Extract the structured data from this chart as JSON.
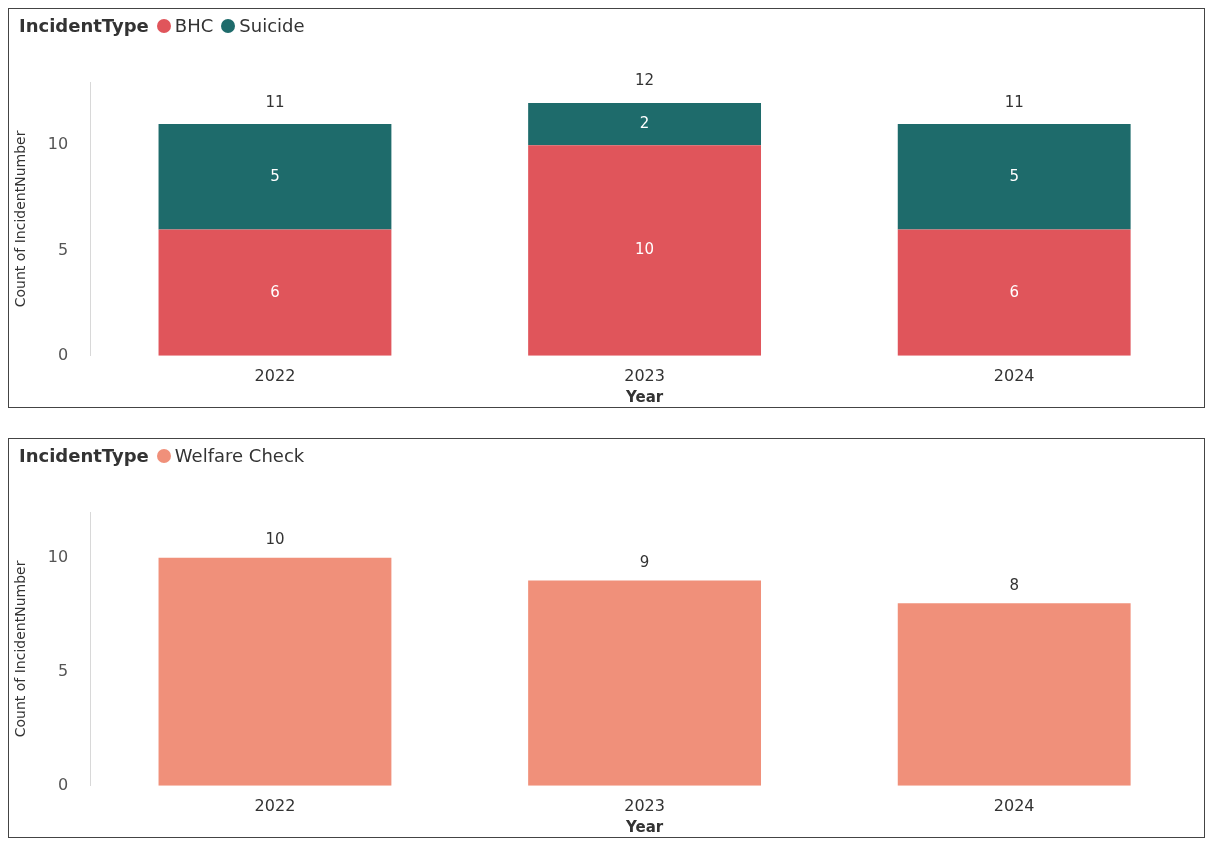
{
  "chart_data": [
    {
      "type": "bar",
      "legend_title": "IncidentType",
      "legend": "top left",
      "xlabel": "Year",
      "ylabel": "Count of IncidentNumber",
      "categories": [
        "2022",
        "2023",
        "2024"
      ],
      "stacked": true,
      "data_labels": true,
      "totals": [
        "11",
        "12",
        "11"
      ],
      "ylim": [
        0,
        13
      ],
      "yticks": [
        0,
        5,
        10
      ],
      "series": [
        {
          "name": "BHC",
          "color": "#e0555b",
          "values": [
            6,
            10,
            6
          ]
        },
        {
          "name": "Suicide",
          "color": "#1e6b6b",
          "values": [
            5,
            2,
            5
          ]
        }
      ]
    },
    {
      "type": "bar",
      "legend_title": "IncidentType",
      "legend": "top left",
      "xlabel": "Year",
      "ylabel": "Count of IncidentNumber",
      "categories": [
        "2022",
        "2023",
        "2024"
      ],
      "data_labels": true,
      "ylim": [
        0,
        12
      ],
      "yticks": [
        0,
        5,
        10
      ],
      "series": [
        {
          "name": "Welfare Check",
          "color": "#f0907a",
          "values": [
            10,
            9,
            8
          ]
        }
      ]
    }
  ]
}
